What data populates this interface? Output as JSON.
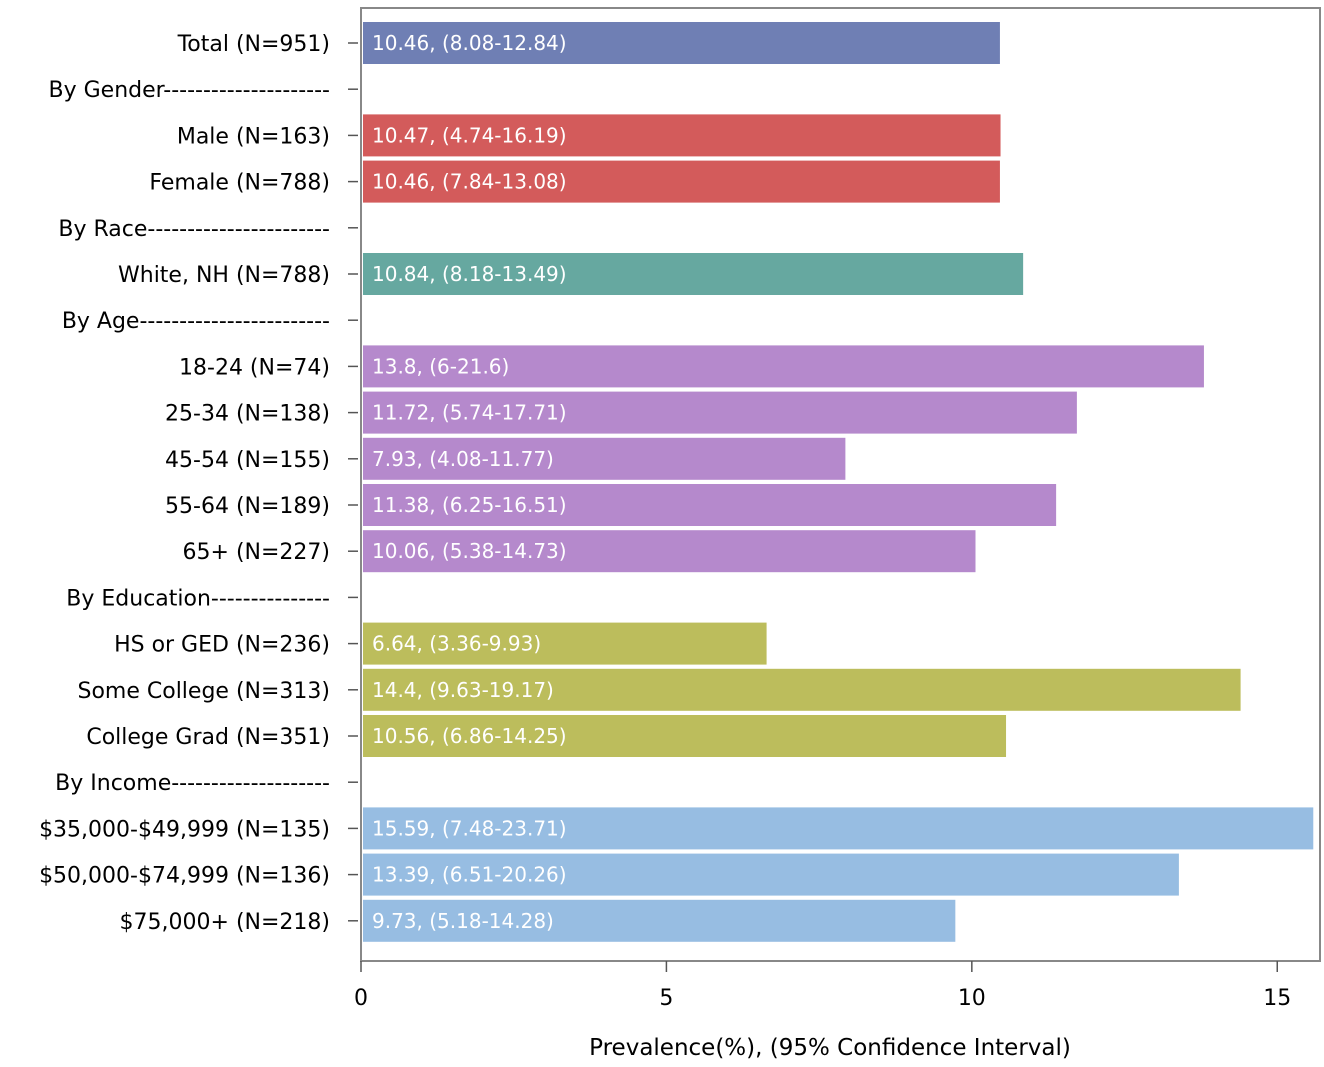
{
  "chart_data": {
    "type": "bar",
    "orientation": "horizontal",
    "xlabel": "Prevalence(%), (95% Confidence Interval)",
    "xlim": [
      0,
      15.7
    ],
    "xticks": [
      "0",
      "5",
      "10",
      "15"
    ],
    "grid": false,
    "legend": "none",
    "rows": [
      {
        "label": "Total (N=951)",
        "value": 10.46,
        "bar_label": "10.46, (8.08-12.84)",
        "color": "#6f7fb4"
      },
      {
        "label": "By Gender---------------------",
        "value": null,
        "bar_label": "",
        "color": ""
      },
      {
        "label": "Male (N=163)",
        "value": 10.47,
        "bar_label": "10.47, (4.74-16.19)",
        "color": "#d35b5b"
      },
      {
        "label": "Female (N=788)",
        "value": 10.46,
        "bar_label": "10.46, (7.84-13.08)",
        "color": "#d35b5b"
      },
      {
        "label": "By Race-----------------------",
        "value": null,
        "bar_label": "",
        "color": ""
      },
      {
        "label": "White, NH (N=788)",
        "value": 10.84,
        "bar_label": "10.84, (8.18-13.49)",
        "color": "#66a8a0"
      },
      {
        "label": "By Age------------------------",
        "value": null,
        "bar_label": "",
        "color": ""
      },
      {
        "label": "18-24 (N=74)",
        "value": 13.8,
        "bar_label": "13.8, (6-21.6)",
        "color": "#b589cc"
      },
      {
        "label": "25-34 (N=138)",
        "value": 11.72,
        "bar_label": "11.72, (5.74-17.71)",
        "color": "#b589cc"
      },
      {
        "label": "45-54 (N=155)",
        "value": 7.93,
        "bar_label": "7.93, (4.08-11.77)",
        "color": "#b589cc"
      },
      {
        "label": "55-64 (N=189)",
        "value": 11.38,
        "bar_label": "11.38, (6.25-16.51)",
        "color": "#b589cc"
      },
      {
        "label": "65+ (N=227)",
        "value": 10.06,
        "bar_label": "10.06, (5.38-14.73)",
        "color": "#b589cc"
      },
      {
        "label": "By Education---------------",
        "value": null,
        "bar_label": "",
        "color": ""
      },
      {
        "label": "HS or GED (N=236)",
        "value": 6.64,
        "bar_label": "6.64, (3.36-9.93)",
        "color": "#bcbd5c"
      },
      {
        "label": "Some College (N=313)",
        "value": 14.4,
        "bar_label": "14.4, (9.63-19.17)",
        "color": "#bcbd5c"
      },
      {
        "label": "College Grad (N=351)",
        "value": 10.56,
        "bar_label": "10.56, (6.86-14.25)",
        "color": "#bcbd5c"
      },
      {
        "label": "By Income--------------------",
        "value": null,
        "bar_label": "",
        "color": ""
      },
      {
        "label": "$35,000-$49,999 (N=135)",
        "value": 15.59,
        "bar_label": "15.59, (7.48-23.71)",
        "color": "#97bde2"
      },
      {
        "label": "$50,000-$74,999 (N=136)",
        "value": 13.39,
        "bar_label": "13.39, (6.51-20.26)",
        "color": "#97bde2"
      },
      {
        "label": "$75,000+ (N=218)",
        "value": 9.73,
        "bar_label": "9.73, (5.18-14.28)",
        "color": "#97bde2"
      }
    ]
  }
}
